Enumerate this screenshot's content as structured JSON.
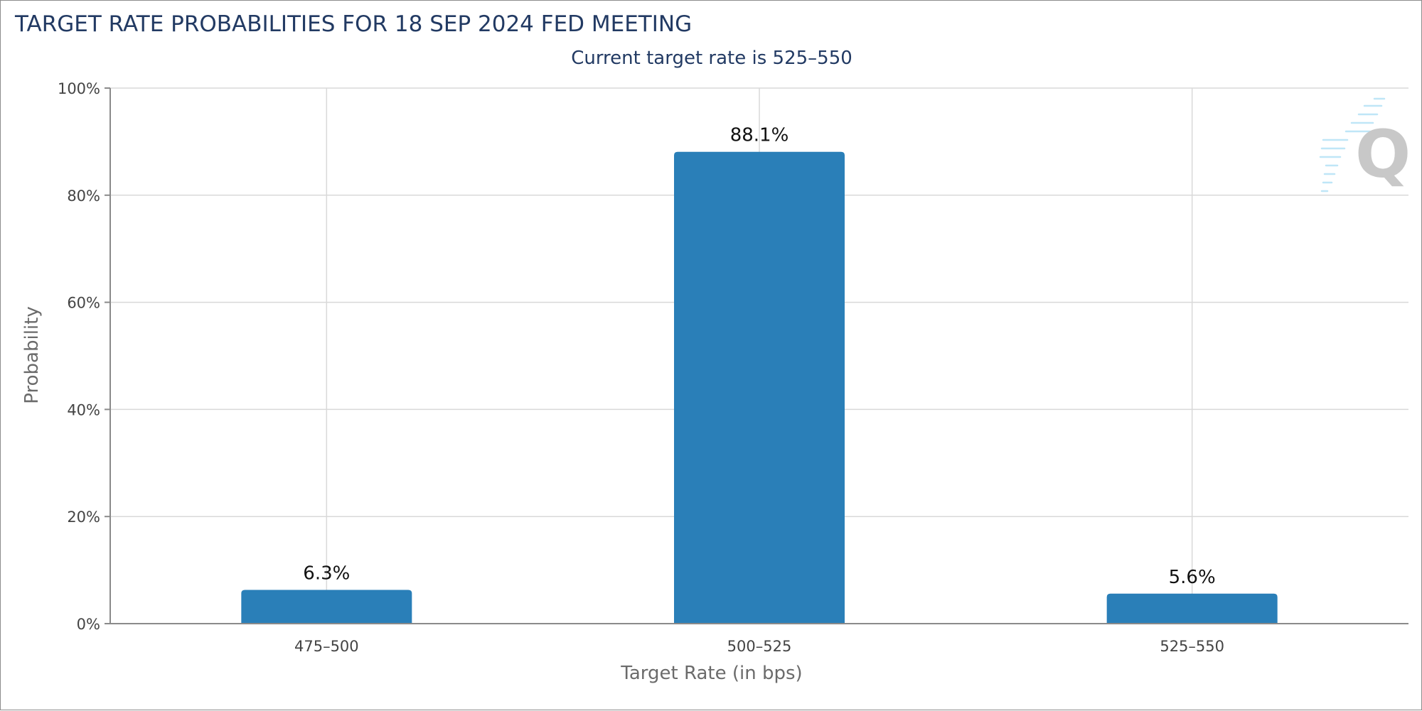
{
  "chart_data": {
    "type": "bar",
    "title": "TARGET RATE PROBABILITIES FOR 18 SEP 2024 FED MEETING",
    "subtitle": "Current target rate is 525–550",
    "categories": [
      "475–500",
      "500–525",
      "525–550"
    ],
    "values": [
      6.3,
      88.1,
      5.6
    ],
    "data_labels": [
      "6.3%",
      "88.1%",
      "5.6%"
    ],
    "xlabel": "Target Rate (in bps)",
    "ylabel": "Probability",
    "ylim": [
      0,
      100
    ],
    "yticks": [
      0,
      20,
      40,
      60,
      80,
      100
    ],
    "ytick_labels": [
      "0%",
      "20%",
      "40%",
      "60%",
      "80%",
      "100%"
    ],
    "grid": true,
    "legend": "none",
    "bar_color": "#2a7fb8"
  }
}
